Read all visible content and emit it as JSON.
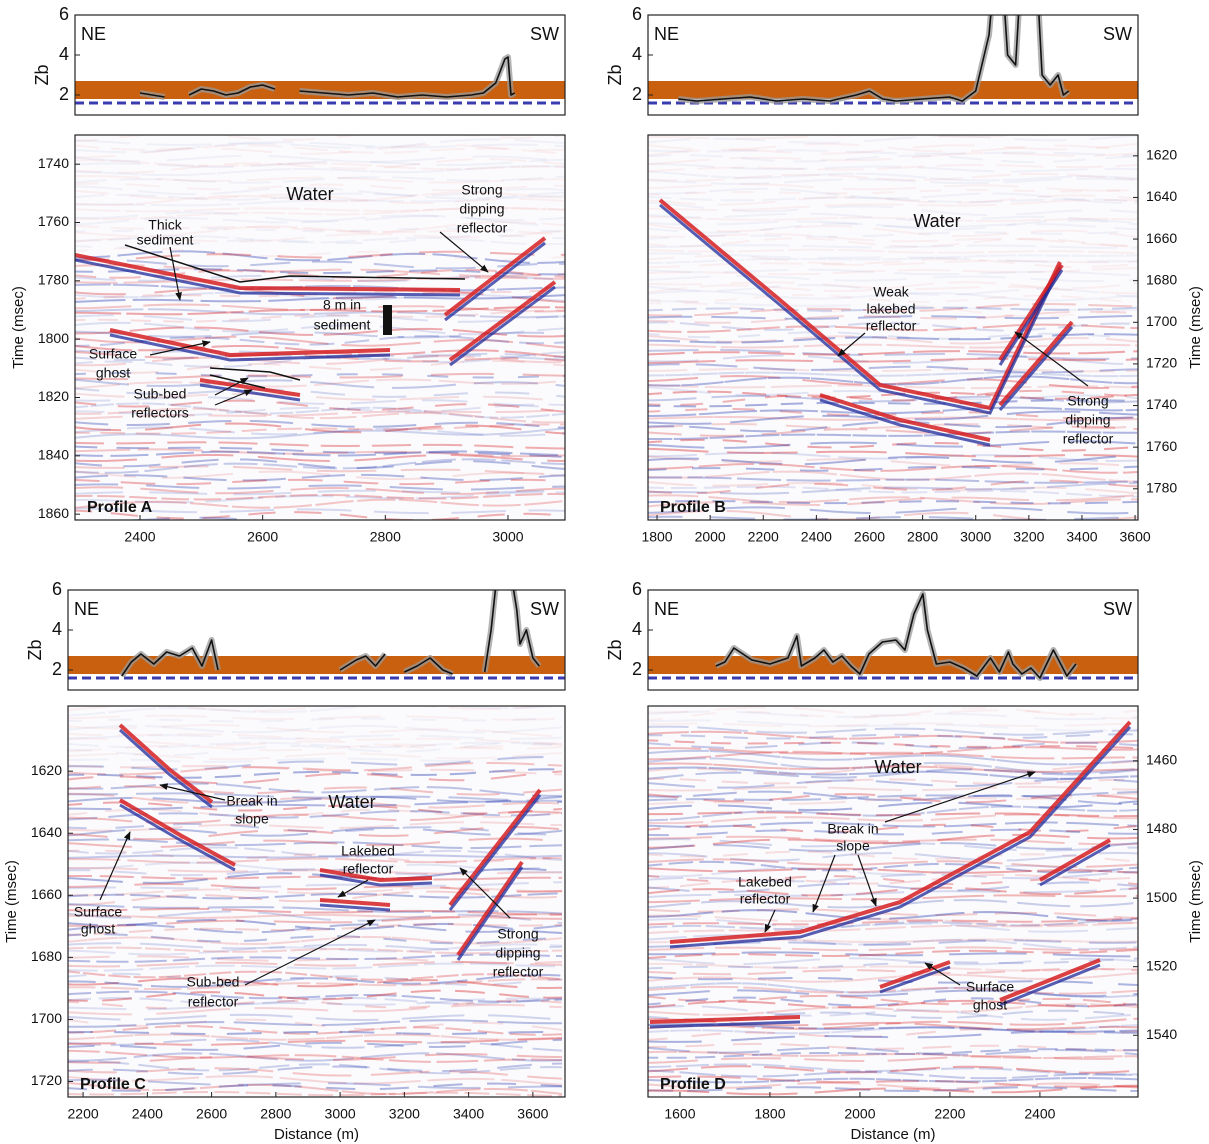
{
  "chart_data": [
    {
      "type": "zb-line",
      "y_label": "Zb",
      "left_label": "NE",
      "right_label": "SW",
      "xlim": [
        2294,
        3093
      ],
      "ylim": [
        1,
        6
      ],
      "yticks": [
        2,
        4,
        6
      ],
      "band": [
        1.8,
        2.7
      ],
      "reference_line": 1.6,
      "band_color": "#c8600f",
      "reference_color": "#3b3bb0",
      "color": "#111111",
      "x": [
        2400,
        2420,
        2440,
        2460,
        2480,
        2500,
        2520,
        2540,
        2560,
        2580,
        2600,
        2620,
        2640,
        2660,
        2700,
        2740,
        2780,
        2820,
        2860,
        2900,
        2940,
        2960,
        2980,
        2995,
        3000,
        3005,
        3011
      ],
      "values": [
        2.1,
        2.0,
        1.9,
        null,
        2.0,
        2.3,
        2.2,
        2.0,
        2.1,
        2.4,
        2.5,
        2.3,
        null,
        2.2,
        2.1,
        2.0,
        2.1,
        1.9,
        2.0,
        1.9,
        2.0,
        2.1,
        2.6,
        3.8,
        3.9,
        2.0,
        2.1
      ]
    },
    {
      "type": "seismic",
      "title": "Profile A",
      "y_label": "Time (msec)",
      "y_axis_side": "left",
      "xlim": [
        2294,
        3093
      ],
      "xticks": [
        2400,
        2600,
        2800,
        3000
      ],
      "ylim": [
        1730,
        1862
      ],
      "yticks": [
        1740,
        1760,
        1780,
        1800,
        1820,
        1840,
        1860
      ],
      "y_inverted": true,
      "annotations": [
        [
          "Water"
        ],
        [
          "Thick",
          "sediment"
        ],
        [
          "Strong",
          "dipping",
          "reflector"
        ],
        [
          "8 m in",
          "sediment"
        ],
        [
          "Surface",
          "ghost"
        ],
        [
          "Sub-bed",
          "reflectors"
        ]
      ]
    },
    {
      "type": "zb-line",
      "y_label": "Zb",
      "left_label": "NE",
      "right_label": "SW",
      "xlim": [
        1766,
        3611
      ],
      "ylim": [
        1,
        6
      ],
      "yticks": [
        2,
        4,
        6
      ],
      "band": [
        1.8,
        2.7
      ],
      "reference_line": 1.6,
      "band_color": "#c8600f",
      "reference_color": "#3b3bb0",
      "color": "#111111",
      "x": [
        1880,
        1950,
        2050,
        2150,
        2250,
        2350,
        2450,
        2550,
        2600,
        2650,
        2700,
        2800,
        2900,
        2950,
        3000,
        3050,
        3070,
        3100,
        3120,
        3150,
        3170,
        3230,
        3250,
        3280,
        3310,
        3330,
        3350
      ],
      "values": [
        1.8,
        1.7,
        1.8,
        1.9,
        1.7,
        1.8,
        1.7,
        2.0,
        2.2,
        1.8,
        1.7,
        1.8,
        1.9,
        1.7,
        2.2,
        5,
        8,
        8,
        4,
        3.5,
        8,
        8,
        3,
        2.5,
        3.0,
        2.0,
        2.2
      ]
    },
    {
      "type": "seismic",
      "title": "Profile B",
      "y_label": "Time (msec)",
      "y_axis_side": "right",
      "xlim": [
        1766,
        3611
      ],
      "xticks": [
        1800,
        2000,
        2200,
        2400,
        2600,
        2800,
        3000,
        3200,
        3400,
        3600
      ],
      "ylim": [
        1610,
        1795
      ],
      "yticks": [
        1620,
        1640,
        1660,
        1680,
        1700,
        1720,
        1740,
        1760,
        1780
      ],
      "y_inverted": true,
      "annotations": [
        [
          "Water"
        ],
        [
          "Weak",
          "lakebed",
          "reflector"
        ],
        [
          "Strong",
          "dipping",
          "reflector"
        ]
      ]
    },
    {
      "type": "zb-line",
      "y_label": "Zb",
      "left_label": "NE",
      "right_label": "SW",
      "xlim": [
        2153,
        3700
      ],
      "ylim": [
        1,
        6
      ],
      "yticks": [
        2,
        4,
        6
      ],
      "band": [
        1.8,
        2.7
      ],
      "reference_line": 1.6,
      "band_color": "#c8600f",
      "reference_color": "#3b3bb0",
      "color": "#111111",
      "x": [
        2320,
        2350,
        2380,
        2420,
        2460,
        2500,
        2540,
        2570,
        2600,
        2620,
        2800,
        3000,
        3050,
        3080,
        3110,
        3140,
        3170,
        3200,
        3240,
        3280,
        3320,
        3350,
        3400,
        3450,
        3470,
        3490,
        3520,
        3550,
        3560,
        3580,
        3600,
        3620
      ],
      "values": [
        1.7,
        2.4,
        2.8,
        2.3,
        2.9,
        2.7,
        3.1,
        2.2,
        3.5,
        2.0,
        null,
        2.0,
        2.5,
        2.7,
        2.2,
        2.8,
        null,
        1.9,
        2.2,
        2.6,
        2.0,
        1.8,
        null,
        1.9,
        4,
        7,
        8,
        5,
        3.3,
        4.0,
        2.6,
        2.2
      ]
    },
    {
      "type": "seismic",
      "title": "Profile C",
      "y_label": "Time (msec)",
      "x_label": "Distance (m)",
      "y_axis_side": "left",
      "xlim": [
        2153,
        3700
      ],
      "xticks": [
        2200,
        2400,
        2600,
        2800,
        3000,
        3200,
        3400,
        3600
      ],
      "ylim": [
        1599,
        1725
      ],
      "yticks": [
        1620,
        1640,
        1660,
        1680,
        1700,
        1720
      ],
      "y_inverted": true,
      "annotations": [
        [
          "Water"
        ],
        [
          "Break in",
          "slope"
        ],
        [
          "Lakebed",
          "reflector"
        ],
        [
          "Surface",
          "ghost"
        ],
        [
          "Sub-bed",
          "reflector"
        ],
        [
          "Strong",
          "dipping",
          "reflector"
        ]
      ]
    },
    {
      "type": "zb-line",
      "y_label": "Zb",
      "left_label": "NE",
      "right_label": "SW",
      "xlim": [
        1529,
        2618
      ],
      "ylim": [
        1,
        6
      ],
      "yticks": [
        2,
        4,
        6
      ],
      "band": [
        1.8,
        2.7
      ],
      "reference_line": 1.6,
      "band_color": "#c8600f",
      "reference_color": "#3b3bb0",
      "color": "#111111",
      "x": [
        1680,
        1700,
        1720,
        1760,
        1800,
        1840,
        1860,
        1870,
        1900,
        1920,
        1940,
        1960,
        1980,
        2000,
        2020,
        2050,
        2080,
        2100,
        2120,
        2140,
        2150,
        2170,
        2200,
        2230,
        2260,
        2290,
        2310,
        2330,
        2340,
        2360,
        2380,
        2400,
        2430,
        2460,
        2480
      ],
      "values": [
        2.2,
        2.4,
        3.1,
        2.5,
        2.3,
        2.6,
        3.7,
        2.2,
        2.6,
        3.0,
        2.4,
        2.7,
        2.2,
        1.8,
        2.8,
        3.4,
        3.5,
        3.0,
        4.8,
        5.8,
        4.0,
        2.3,
        2.4,
        2.1,
        1.7,
        2.6,
        1.9,
        2.9,
        2.3,
        1.8,
        2.1,
        1.6,
        3.0,
        1.7,
        2.3
      ]
    },
    {
      "type": "seismic",
      "title": "Profile D",
      "y_label": "Time (msec)",
      "x_label": "Distance (m)",
      "y_axis_side": "right",
      "xlim": [
        1529,
        2618
      ],
      "xticks": [
        1600,
        1800,
        2000,
        2200,
        2400
      ],
      "ylim": [
        1444,
        1558
      ],
      "yticks": [
        1460,
        1480,
        1500,
        1520,
        1540
      ],
      "y_inverted": true,
      "annotations": [
        [
          "Water"
        ],
        [
          "Break in",
          "slope"
        ],
        [
          "Lakebed",
          "reflector"
        ],
        [
          "Surface",
          "ghost"
        ]
      ]
    }
  ]
}
